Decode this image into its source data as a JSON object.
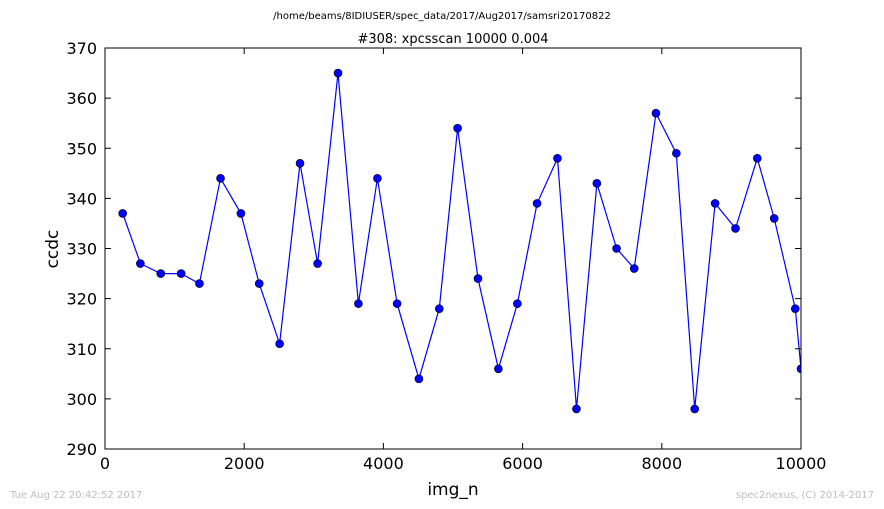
{
  "figure": {
    "suptitle": "/home/beams/8IDIUSER/spec_data/2017/Aug2017/samsri20170822",
    "footer_left": "Tue Aug 22 20:42:52 2017",
    "footer_right": "spec2nexus, (C) 2014-2017"
  },
  "chart_data": {
    "type": "line",
    "title": "#308: xpcsscan 10000 0.004",
    "xlabel": "img_n",
    "ylabel": "ccdc",
    "xlim": [
      0,
      10000
    ],
    "ylim": [
      290,
      370
    ],
    "xticks": [
      0,
      2000,
      4000,
      6000,
      8000,
      10000
    ],
    "yticks": [
      290,
      300,
      310,
      320,
      330,
      340,
      350,
      360,
      370
    ],
    "grid": false,
    "line_color": "#0000ff",
    "marker": "circle",
    "x": [
      254,
      508,
      801,
      1094,
      1357,
      1660,
      1953,
      2216,
      2509,
      2802,
      3055,
      3348,
      3641,
      3914,
      4197,
      4510,
      4803,
      5066,
      5359,
      5652,
      5925,
      6208,
      6501,
      6774,
      7067,
      7350,
      7604,
      7916,
      8209,
      8473,
      8766,
      9059,
      9372,
      9615,
      9918,
      10000
    ],
    "y": [
      337,
      327,
      325,
      325,
      323,
      344,
      337,
      323,
      311,
      347,
      327,
      365,
      319,
      344,
      319,
      304,
      318,
      354,
      324,
      306,
      319,
      339,
      348,
      298,
      343,
      330,
      326,
      357,
      349,
      298,
      339,
      334,
      348,
      336,
      318,
      306
    ]
  }
}
